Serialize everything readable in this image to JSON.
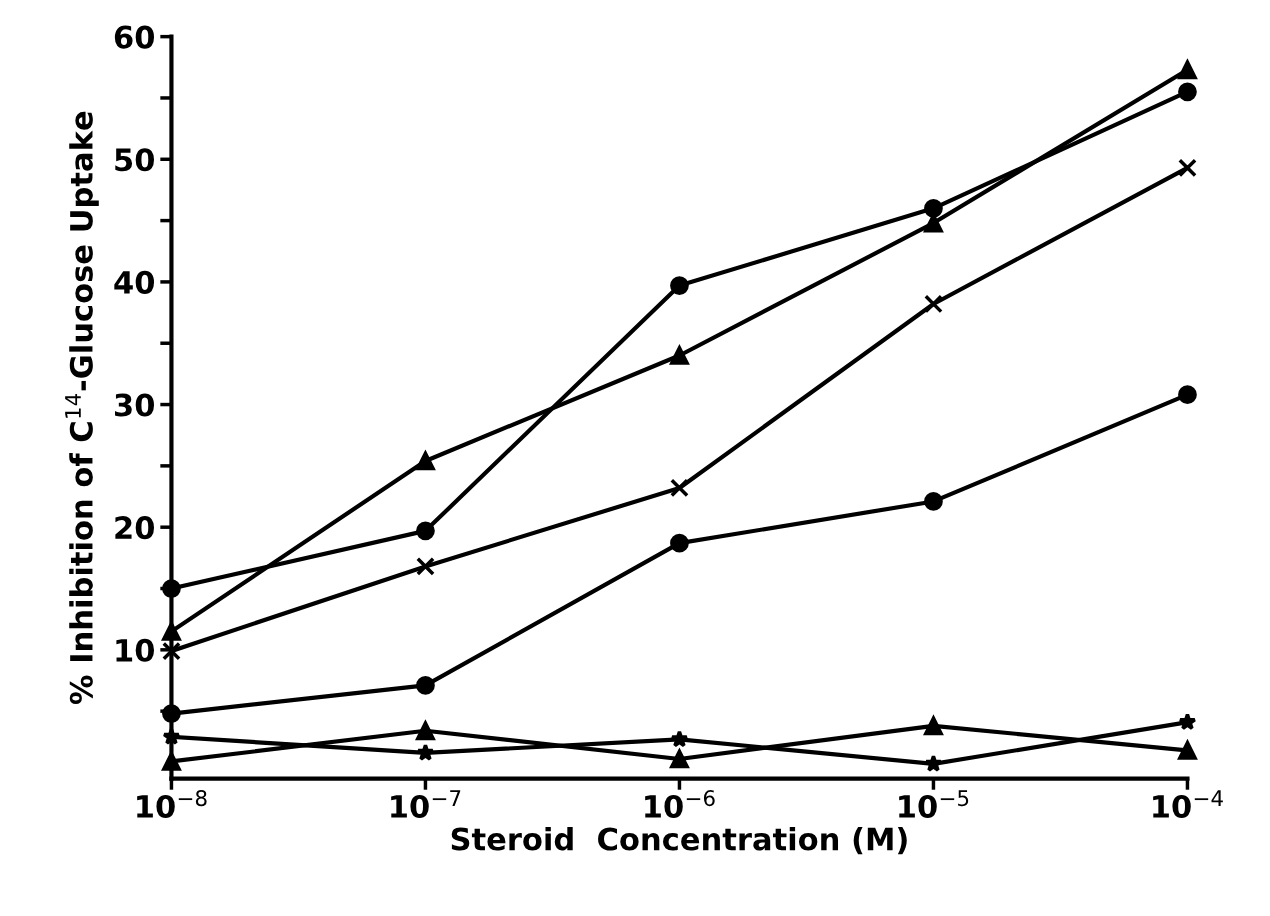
{
  "chart_data": {
    "type": "line",
    "xlabel": "Steroid  Concentration (M)",
    "ylabel": "% Inhibition of C$^{14}$-Glucose Uptake",
    "x": [
      1e-08,
      1e-07,
      1e-06,
      1e-05,
      0.0001
    ],
    "log": "x",
    "xlim": [
      1e-08,
      0.0001
    ],
    "xticks": [
      {
        "value": 1e-08,
        "label": "10$^{−8}$"
      },
      {
        "value": 1e-07,
        "label": "10$^{−7}$"
      },
      {
        "value": 1e-06,
        "label": "10$^{−6}$"
      },
      {
        "value": 1e-05,
        "label": "10$^{−5}$"
      },
      {
        "value": 0.0001,
        "label": "10$^{−4}$"
      }
    ],
    "ylim": [
      -0.5,
      60
    ],
    "yticks": [
      {
        "value": 5,
        "label": null
      },
      10,
      {
        "value": 15,
        "label": null
      },
      20,
      {
        "value": 25,
        "label": null
      },
      30,
      {
        "value": 35,
        "label": null
      },
      40,
      {
        "value": 45,
        "label": null
      },
      50,
      {
        "value": 55,
        "label": null
      },
      60
    ],
    "grid": false,
    "legend": false,
    "line_style": "solid",
    "series": [
      {
        "color": "#000000",
        "marker": "circle",
        "values": [
          15.0,
          19.7,
          39.7,
          46.0,
          55.5
        ]
      },
      {
        "color": "#000000",
        "marker": "triangle",
        "values": [
          11.5,
          25.4,
          34.0,
          44.8,
          57.3
        ]
      },
      {
        "color": "#000000",
        "marker": "cross",
        "values": [
          9.9,
          16.8,
          23.2,
          38.2,
          49.3
        ]
      },
      {
        "color": "#000000",
        "marker": "circle",
        "values": [
          4.8,
          7.1,
          18.7,
          22.1,
          30.8
        ]
      },
      {
        "color": "#000000",
        "marker": "star",
        "values": [
          2.9,
          1.6,
          2.7,
          0.7,
          4.1
        ]
      },
      {
        "color": "#000000",
        "marker": "triangle",
        "values": [
          0.9,
          3.4,
          1.1,
          3.8,
          1.8
        ]
      }
    ]
  }
}
